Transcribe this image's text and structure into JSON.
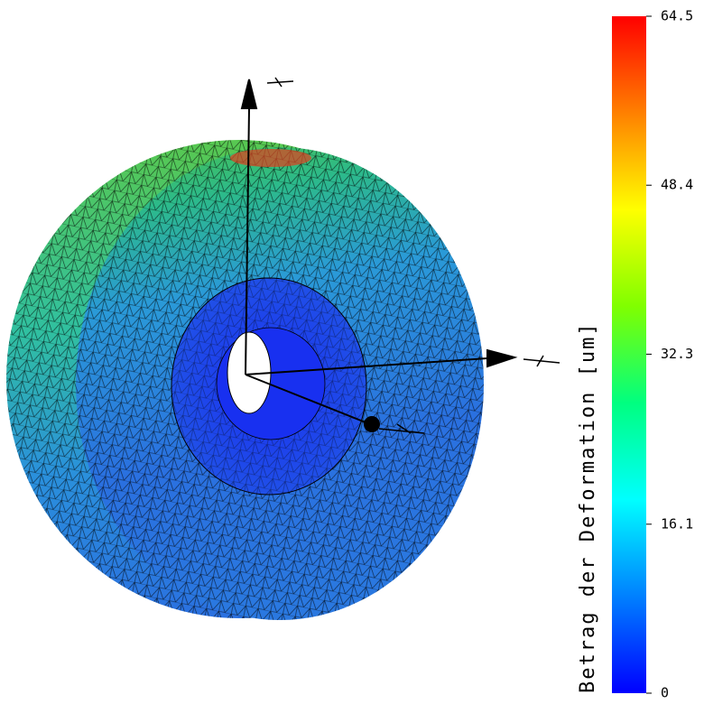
{
  "colorbar": {
    "label": "Betrag der Deformation [um]",
    "range": [
      0,
      64.5
    ],
    "ticks": [
      0,
      16.1,
      32.3,
      48.4,
      64.5
    ],
    "colors": [
      "#0000ff",
      "#0080ff",
      "#00ffff",
      "#00ff80",
      "#80ff00",
      "#ffff00",
      "#ff8000",
      "#ff0000"
    ]
  }
}
